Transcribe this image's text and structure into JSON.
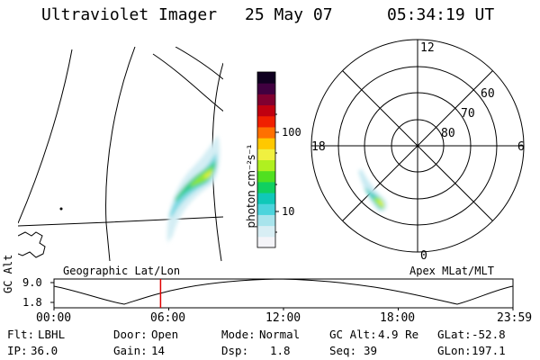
{
  "header": {
    "instrument": "Ultraviolet Imager",
    "date": "25 May 07",
    "time": "05:34:19 UT"
  },
  "colorbar": {
    "unit_label": "photon cm⁻²s⁻¹",
    "ticks": [
      {
        "label": "100",
        "value": 100
      },
      {
        "label": "10",
        "value": 10
      }
    ],
    "colors": [
      "#f4f4f8",
      "#d8eef4",
      "#a8e4ec",
      "#4cd4dc",
      "#10c8b8",
      "#10d060",
      "#50e020",
      "#b0f020",
      "#f0f040",
      "#ffc800",
      "#ff7000",
      "#f02000",
      "#c00010",
      "#800030",
      "#400040",
      "#100020"
    ]
  },
  "polar_plot": {
    "mlt_labels": {
      "top": "12",
      "left": "18",
      "right": "6",
      "bottom": "0"
    },
    "lat_labels": [
      "60",
      "70",
      "80"
    ],
    "caption": "Apex MLat/MLT"
  },
  "geo_plot": {
    "caption": "Geographic Lat/Lon"
  },
  "timeline": {
    "axis_label": "GC Alt",
    "y_ticks": [
      "9.0",
      "1.8"
    ],
    "x_ticks": [
      "00:00",
      "06:00",
      "12:00",
      "18:00",
      "23:59"
    ],
    "current_time_hours": 5.57,
    "marker_color": "#e00000"
  },
  "info": {
    "filter_label": "Flt:",
    "filter_value": "LBHL",
    "ip_label": "IP:",
    "ip_value": "36.0",
    "door_label": "Door:",
    "door_value": "Open",
    "gain_label": "Gain:",
    "gain_value": "14",
    "mode_label": "Mode:",
    "mode_value": "Normal",
    "dsp_label": "Dsp:",
    "dsp_value": "1.8",
    "gcalt_label": "GC Alt:",
    "gcalt_value": "4.9 Re",
    "seq_label": "Seq:",
    "seq_value": "39",
    "glat_label": "GLat:",
    "glat_value": "-52.8",
    "glon_label": "GLon:",
    "glon_value": "197.1"
  }
}
